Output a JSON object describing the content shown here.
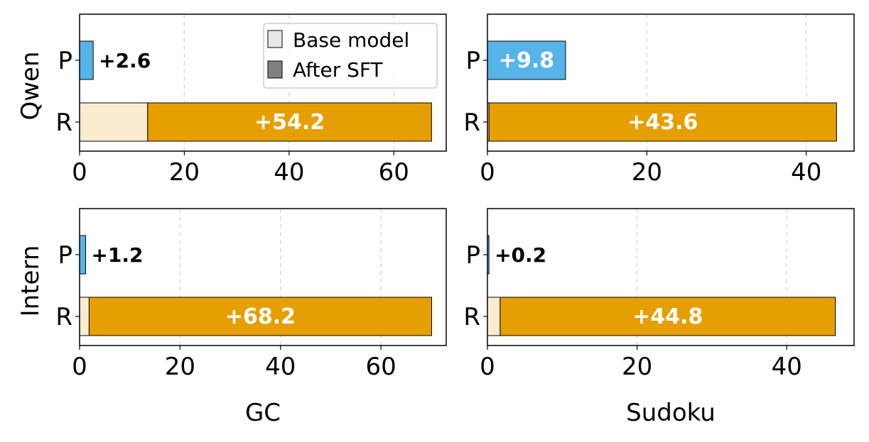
{
  "legend": {
    "base_label": "Base model",
    "sft_label": "After SFT",
    "base_swatch_color": "#e8e8e8",
    "sft_swatch_color": "#808080",
    "placement": "upper-right of top-left panel"
  },
  "colors": {
    "p_bar": "#56b4e9",
    "r_base": "#fbecd0",
    "r_sft": "#e69f00",
    "label_dark": "#000000",
    "label_light": "#ffffff",
    "grid": "#d9d9d9"
  },
  "row_labels": [
    "Qwen",
    "Intern"
  ],
  "column_labels": [
    "GC",
    "Sudoku"
  ],
  "chart_data": [
    {
      "type": "bar",
      "orientation": "horizontal",
      "stacked": true,
      "row": "Qwen",
      "column": "GC",
      "categories": [
        "P",
        "R"
      ],
      "series": [
        {
          "name": "Base model",
          "values": [
            0,
            13.0
          ]
        },
        {
          "name": "After SFT",
          "values": [
            2.6,
            54.2
          ]
        }
      ],
      "annotations": [
        "+2.6",
        "+54.2"
      ],
      "xlim": [
        0,
        70
      ],
      "xticks": [
        0,
        20,
        40,
        60
      ],
      "grid": "x dashed"
    },
    {
      "type": "bar",
      "orientation": "horizontal",
      "stacked": true,
      "row": "Qwen",
      "column": "Sudoku",
      "categories": [
        "P",
        "R"
      ],
      "series": [
        {
          "name": "Base model",
          "values": [
            0,
            0.2
          ]
        },
        {
          "name": "After SFT",
          "values": [
            9.8,
            43.6
          ]
        }
      ],
      "annotations": [
        "+9.8",
        "+43.6"
      ],
      "xlim": [
        0,
        46
      ],
      "xticks": [
        0,
        20,
        40
      ],
      "grid": "x dashed"
    },
    {
      "type": "bar",
      "orientation": "horizontal",
      "stacked": true,
      "row": "Intern",
      "column": "GC",
      "categories": [
        "P",
        "R"
      ],
      "series": [
        {
          "name": "Base model",
          "values": [
            0,
            1.9
          ]
        },
        {
          "name": "After SFT",
          "values": [
            1.2,
            68.2
          ]
        }
      ],
      "annotations": [
        "+1.2",
        "+68.2"
      ],
      "xlim": [
        0,
        73
      ],
      "xticks": [
        0,
        20,
        40,
        60
      ],
      "xlabel": "GC",
      "grid": "x dashed"
    },
    {
      "type": "bar",
      "orientation": "horizontal",
      "stacked": true,
      "row": "Intern",
      "column": "Sudoku",
      "categories": [
        "P",
        "R"
      ],
      "series": [
        {
          "name": "Base model",
          "values": [
            0,
            1.7
          ]
        },
        {
          "name": "After SFT",
          "values": [
            0.2,
            44.8
          ]
        }
      ],
      "annotations": [
        "+0.2",
        "+44.8"
      ],
      "xlim": [
        0,
        49
      ],
      "xticks": [
        0,
        20,
        40
      ],
      "xlabel": "Sudoku",
      "grid": "x dashed"
    }
  ]
}
